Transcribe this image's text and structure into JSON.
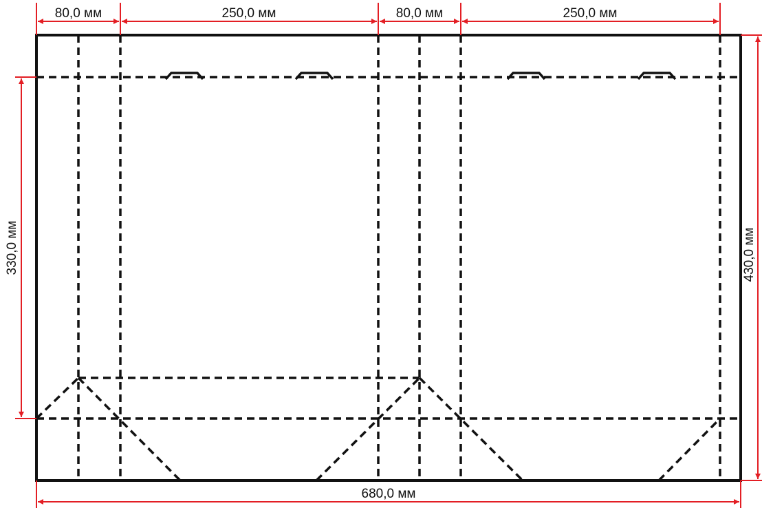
{
  "colors": {
    "outline": "#111111",
    "fold_line": "#111111",
    "dimension": "#e31e24",
    "background": "#ffffff"
  },
  "dimensions": {
    "top_1": "80,0 мм",
    "top_2": "250,0 мм",
    "top_3": "80,0 мм",
    "top_4": "250,0 мм",
    "left_height": "330,0 мм",
    "right_height": "430,0 мм",
    "bottom_width": "680,0 мм"
  }
}
